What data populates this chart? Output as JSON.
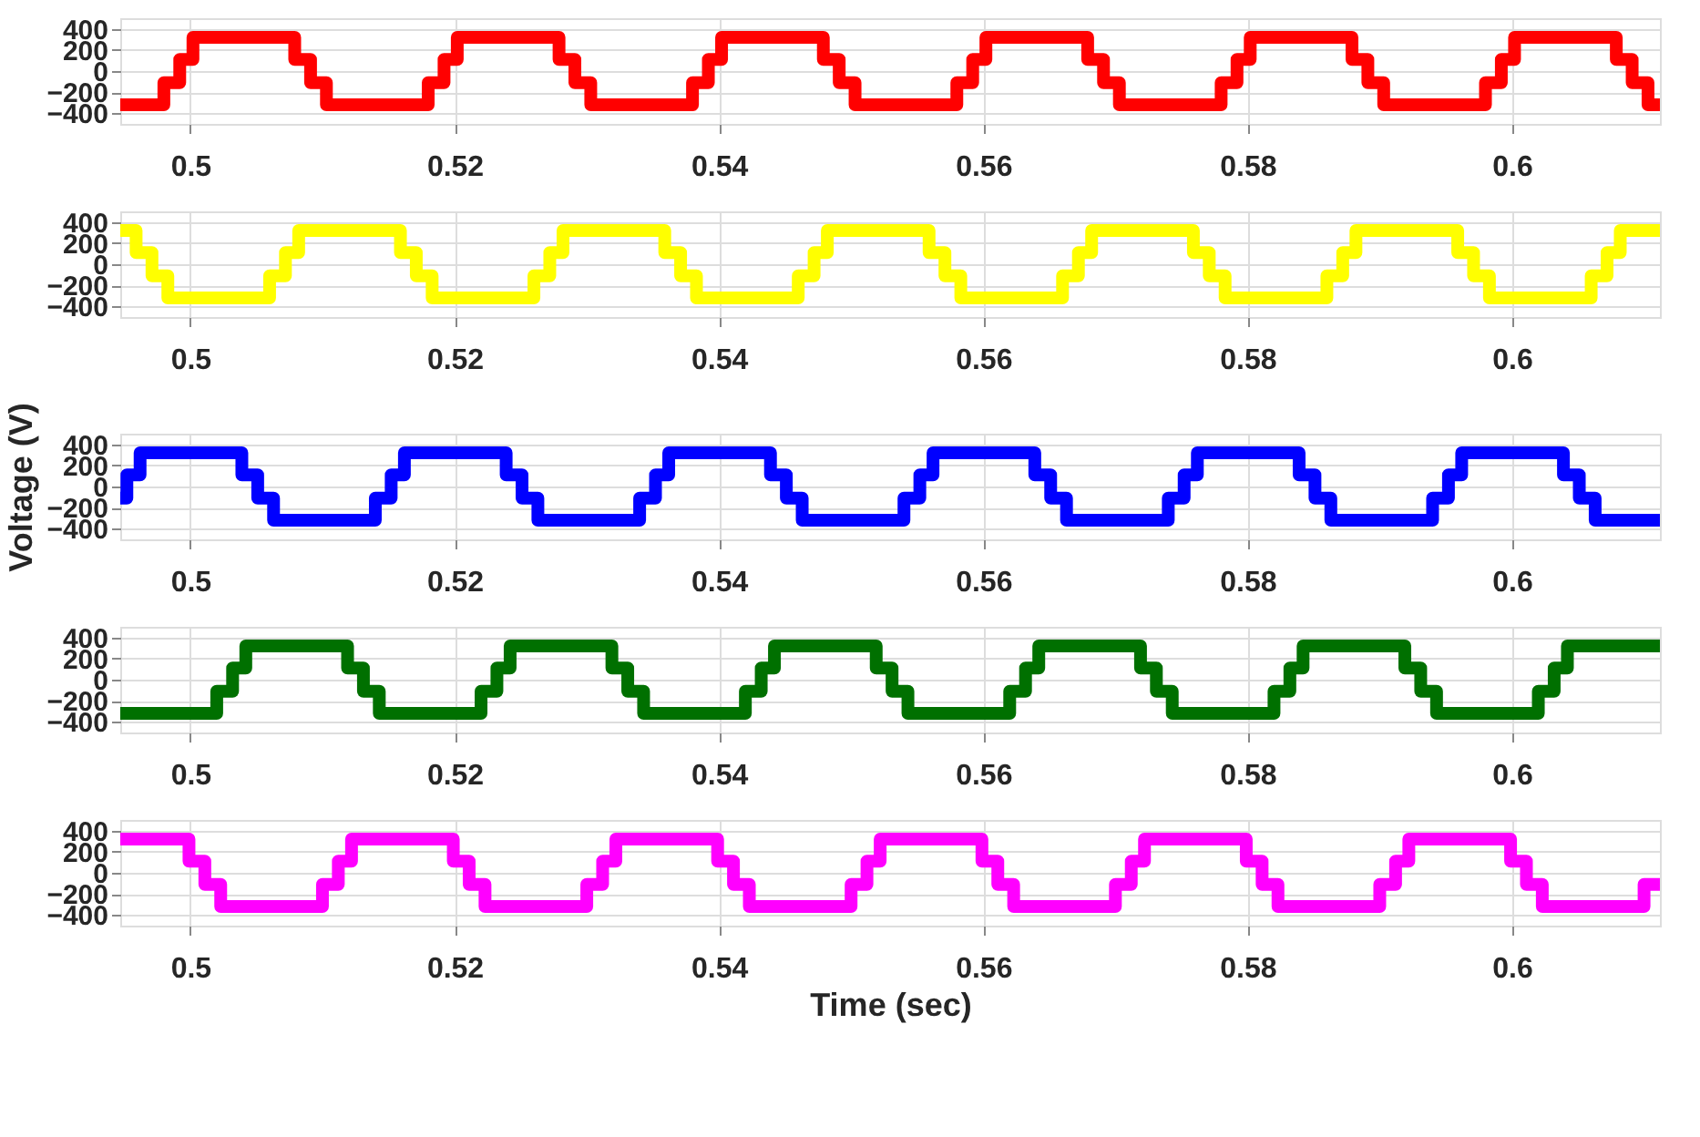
{
  "chart_data": [
    {
      "type": "step",
      "xlim": [
        0.4947,
        0.6112
      ],
      "ylim": [
        -500,
        500
      ],
      "xticks": [
        0.5,
        0.52,
        0.54,
        0.56,
        0.58,
        0.6
      ],
      "yticks": [
        -400,
        -200,
        0,
        200,
        400
      ],
      "grid": true,
      "x": [
        0.4947,
        0.498,
        0.4992,
        0.5002,
        0.5079,
        0.5091,
        0.5103,
        0.518,
        0.5192,
        0.5202,
        0.5279,
        0.5291,
        0.5303,
        0.538,
        0.5392,
        0.5402,
        0.5479,
        0.5491,
        0.5503,
        0.558,
        0.5592,
        0.5602,
        0.5679,
        0.5691,
        0.5703,
        0.578,
        0.5792,
        0.5802,
        0.5879,
        0.5891,
        0.5903,
        0.598,
        0.5992,
        0.6002,
        0.6079,
        0.6091,
        0.6103,
        0.6112
      ],
      "series": [
        {
          "color": "#ff0000",
          "values": [
            -320,
            -110,
            110,
            320,
            110,
            -110,
            -320,
            -110,
            110,
            320,
            110,
            -110,
            -320,
            -110,
            110,
            320,
            110,
            -110,
            -320,
            -110,
            110,
            320,
            110,
            -110,
            -320,
            -110,
            110,
            320,
            110,
            -110,
            -320,
            -110,
            110,
            320,
            110,
            -110,
            -320,
            -320
          ]
        }
      ]
    },
    {
      "type": "step",
      "xlim": [
        0.4947,
        0.6112
      ],
      "ylim": [
        -500,
        500
      ],
      "xticks": [
        0.5,
        0.52,
        0.54,
        0.56,
        0.58,
        0.6
      ],
      "yticks": [
        -400,
        -200,
        0,
        200,
        400
      ],
      "grid": true,
      "x": [
        0.4947,
        0.4959,
        0.4971,
        0.4983,
        0.506,
        0.5072,
        0.5082,
        0.5159,
        0.5171,
        0.5183,
        0.526,
        0.5272,
        0.5282,
        0.5359,
        0.5371,
        0.5383,
        0.546,
        0.5472,
        0.5482,
        0.5559,
        0.5571,
        0.5583,
        0.566,
        0.5672,
        0.5682,
        0.5759,
        0.5771,
        0.5783,
        0.586,
        0.5872,
        0.5882,
        0.5959,
        0.5971,
        0.5983,
        0.606,
        0.6072,
        0.6082,
        0.6112
      ],
      "series": [
        {
          "color": "#ffff00",
          "values": [
            320,
            110,
            -110,
            -320,
            -110,
            110,
            320,
            110,
            -110,
            -320,
            -110,
            110,
            320,
            110,
            -110,
            -320,
            -110,
            110,
            320,
            110,
            -110,
            -320,
            -110,
            110,
            320,
            110,
            -110,
            -320,
            -110,
            110,
            320,
            110,
            -110,
            -320,
            -110,
            110,
            320,
            320
          ]
        }
      ]
    },
    {
      "type": "step",
      "ylabel": "Voltage (V)",
      "xlim": [
        0.4947,
        0.6112
      ],
      "ylim": [
        -500,
        500
      ],
      "xticks": [
        0.5,
        0.52,
        0.54,
        0.56,
        0.58,
        0.6
      ],
      "yticks": [
        -400,
        -200,
        0,
        200,
        400
      ],
      "grid": true,
      "x": [
        0.4947,
        0.4952,
        0.4962,
        0.5039,
        0.5051,
        0.5063,
        0.514,
        0.5152,
        0.5162,
        0.5239,
        0.5251,
        0.5263,
        0.534,
        0.5352,
        0.5362,
        0.5439,
        0.5451,
        0.5463,
        0.554,
        0.5552,
        0.5562,
        0.5639,
        0.5651,
        0.5663,
        0.574,
        0.5752,
        0.5762,
        0.5839,
        0.5851,
        0.5863,
        0.594,
        0.5952,
        0.5962,
        0.6039,
        0.6051,
        0.6063,
        0.6112
      ],
      "series": [
        {
          "color": "#0000ff",
          "values": [
            -110,
            110,
            320,
            110,
            -110,
            -320,
            -110,
            110,
            320,
            110,
            -110,
            -320,
            -110,
            110,
            320,
            110,
            -110,
            -320,
            -110,
            110,
            320,
            110,
            -110,
            -320,
            -110,
            110,
            320,
            110,
            -110,
            -320,
            -110,
            110,
            320,
            110,
            -110,
            -320,
            -320
          ]
        }
      ]
    },
    {
      "type": "step",
      "xlim": [
        0.4947,
        0.6112
      ],
      "ylim": [
        -500,
        500
      ],
      "xticks": [
        0.5,
        0.52,
        0.54,
        0.56,
        0.58,
        0.6
      ],
      "yticks": [
        -400,
        -200,
        0,
        200,
        400
      ],
      "grid": true,
      "x": [
        0.4947,
        0.502,
        0.5032,
        0.5042,
        0.5119,
        0.5131,
        0.5143,
        0.522,
        0.5232,
        0.5242,
        0.5319,
        0.5331,
        0.5343,
        0.542,
        0.5432,
        0.5442,
        0.5519,
        0.5531,
        0.5543,
        0.562,
        0.5632,
        0.5642,
        0.5719,
        0.5731,
        0.5743,
        0.582,
        0.5832,
        0.5842,
        0.5919,
        0.5931,
        0.5943,
        0.602,
        0.6032,
        0.6042,
        0.6112
      ],
      "series": [
        {
          "color": "#007000",
          "values": [
            -320,
            -110,
            110,
            320,
            110,
            -110,
            -320,
            -110,
            110,
            320,
            110,
            -110,
            -320,
            -110,
            110,
            320,
            110,
            -110,
            -320,
            -110,
            110,
            320,
            110,
            -110,
            -320,
            -110,
            110,
            320,
            110,
            -110,
            -320,
            -110,
            110,
            320,
            320
          ]
        }
      ]
    },
    {
      "type": "step",
      "xlabel": "Time (sec)",
      "xlim": [
        0.4947,
        0.6112
      ],
      "ylim": [
        -500,
        500
      ],
      "xticks": [
        0.5,
        0.52,
        0.54,
        0.56,
        0.58,
        0.6
      ],
      "yticks": [
        -400,
        -200,
        0,
        200,
        400
      ],
      "grid": true,
      "x": [
        0.4947,
        0.4999,
        0.5011,
        0.5023,
        0.51,
        0.5112,
        0.5122,
        0.5199,
        0.5211,
        0.5223,
        0.53,
        0.5312,
        0.5322,
        0.5399,
        0.5411,
        0.5423,
        0.55,
        0.5512,
        0.5522,
        0.5599,
        0.5611,
        0.5623,
        0.57,
        0.5712,
        0.5722,
        0.5799,
        0.5811,
        0.5823,
        0.59,
        0.5912,
        0.5922,
        0.5999,
        0.6011,
        0.6023,
        0.61,
        0.6112
      ],
      "series": [
        {
          "color": "#ff00ff",
          "values": [
            320,
            110,
            -110,
            -320,
            -110,
            110,
            320,
            110,
            -110,
            -320,
            -110,
            110,
            320,
            110,
            -110,
            -320,
            -110,
            110,
            320,
            110,
            -110,
            -320,
            -110,
            110,
            320,
            110,
            -110,
            -320,
            -110,
            110,
            320,
            110,
            -110,
            -320,
            -110,
            -110
          ]
        }
      ]
    }
  ]
}
